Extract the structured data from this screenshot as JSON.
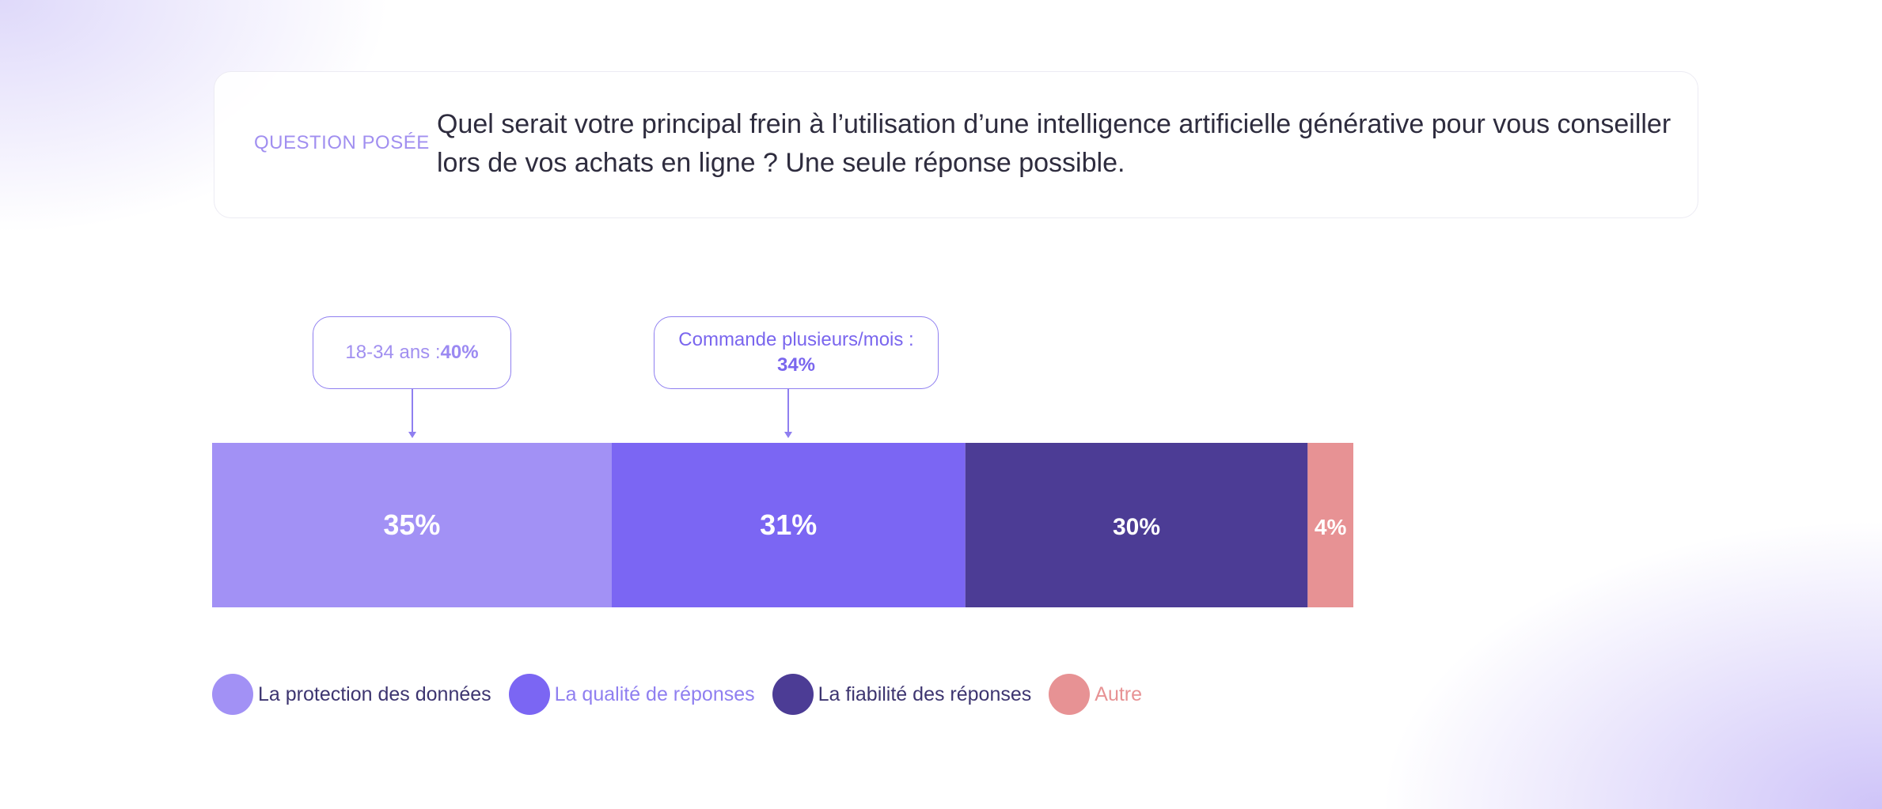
{
  "question": {
    "label": "QUESTION POSÉE",
    "text": "Quel serait votre principal frein à l’utilisation d’une intelligence artificielle générative pour vous conseiller lors de vos achats en ligne ? Une seule réponse possible."
  },
  "callouts": [
    {
      "prefix": "18-34 ans : ",
      "value": "40%"
    },
    {
      "prefix": "Commande plusieurs/mois :",
      "value": "34%"
    }
  ],
  "chart_data": {
    "type": "bar",
    "orientation": "horizontal-stacked",
    "categories": [
      "La protection des données",
      "La qualité de réponses",
      "La fiabilité des réponses",
      "Autre"
    ],
    "values": [
      35,
      31,
      30,
      4
    ],
    "labels": [
      "35%",
      "31%",
      "30%",
      "4%"
    ],
    "colors": [
      "#a291f5",
      "#7b66f3",
      "#4c3c95",
      "#e79294"
    ],
    "legend_text_colors": [
      "#3d3570",
      "#8f7ff0",
      "#3d3570",
      "#e79294"
    ],
    "unit": "%",
    "legend": "bottom-left"
  }
}
